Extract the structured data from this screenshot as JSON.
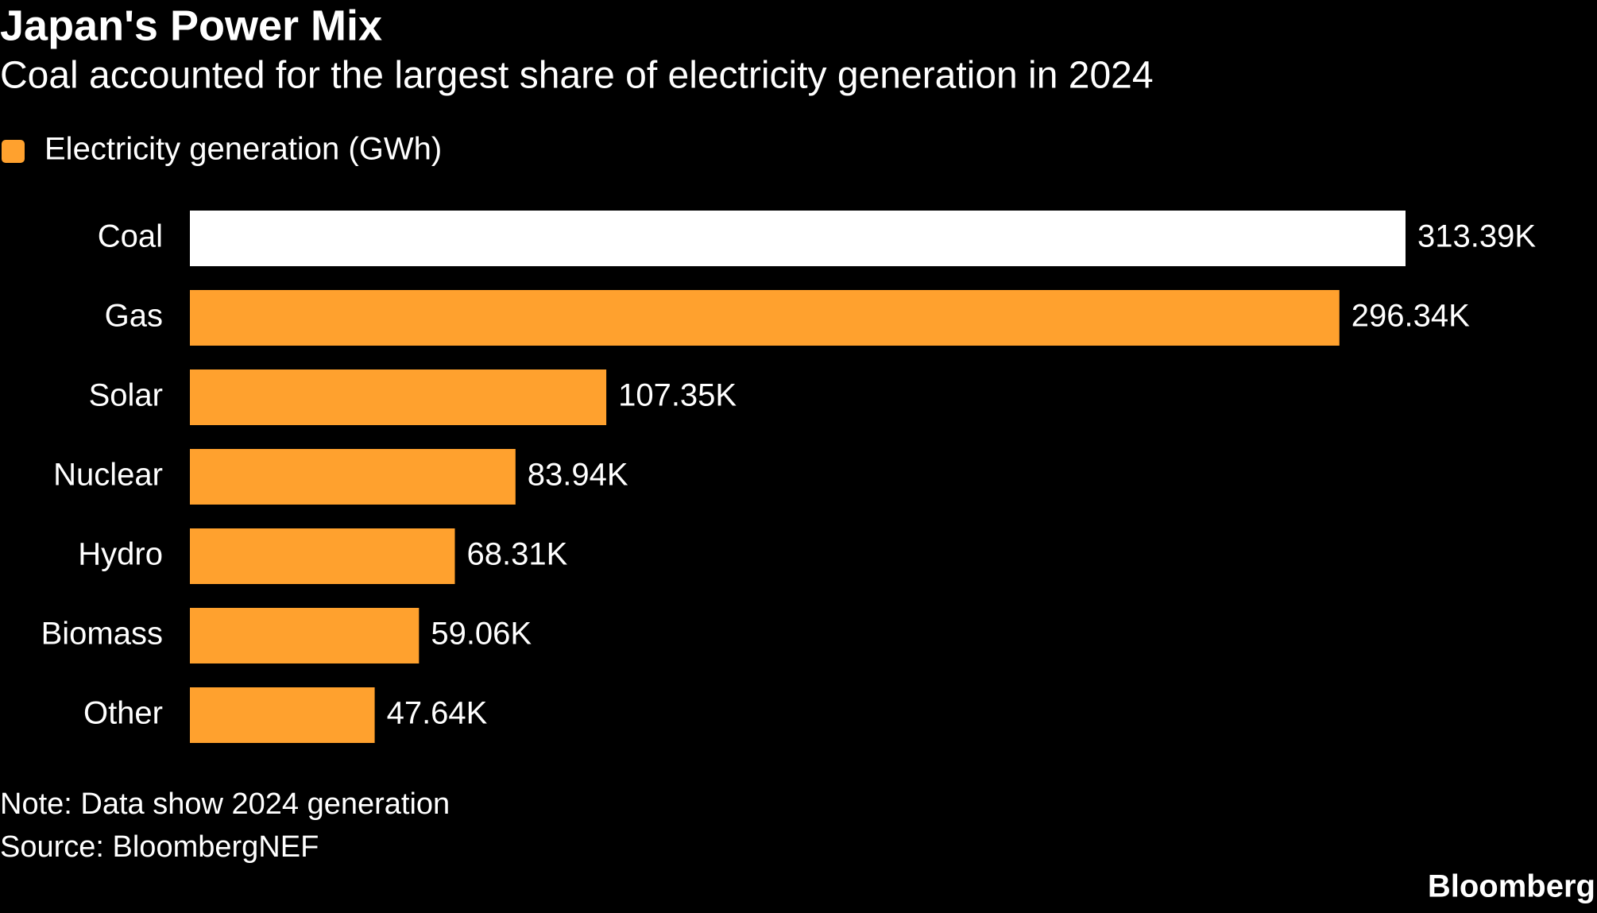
{
  "chart_data": {
    "type": "bar",
    "orientation": "horizontal",
    "title": "Japan's Power Mix",
    "subtitle": "Coal accounted for the largest share of electricity generation in 2024",
    "categories": [
      "Coal",
      "Gas",
      "Solar",
      "Nuclear",
      "Hydro",
      "Biomass",
      "Other"
    ],
    "series": [
      {
        "name": "Electricity generation (GWh)",
        "color": "#ffa12e",
        "colors": [
          "#ffffff",
          "#ffa12e",
          "#ffa12e",
          "#ffa12e",
          "#ffa12e",
          "#ffa12e",
          "#ffa12e"
        ],
        "values": [
          313390,
          296340,
          107350,
          83940,
          68310,
          59060,
          47640
        ],
        "value_labels": [
          "313.39K",
          "296.34K",
          "107.35K",
          "83.94K",
          "68.31K",
          "59.06K",
          "47.64K"
        ]
      }
    ],
    "note": "Note: Data show 2024 generation",
    "source": "Source: BloombergNEF",
    "brand": "Bloomberg"
  }
}
